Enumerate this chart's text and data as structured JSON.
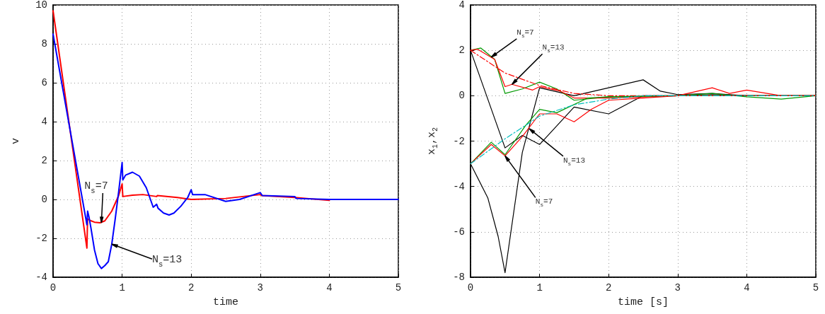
{
  "chart_data": [
    {
      "type": "line",
      "xlabel": "time",
      "ylabel": "v",
      "xlim": [
        0,
        5
      ],
      "xticks": [
        0,
        1,
        2,
        3,
        4,
        5
      ],
      "ylim": [
        -4,
        10
      ],
      "yticks": [
        -4,
        -2,
        0,
        2,
        4,
        6,
        8,
        10
      ],
      "grid": true,
      "series": [
        {
          "color": "#ff0000",
          "x": [
            0,
            0.49,
            0.5,
            0.55,
            0.6,
            0.68,
            0.75,
            0.85,
            0.95,
            1.0,
            1.01,
            1.15,
            1.3,
            1.5,
            1.51,
            1.8,
            2.0,
            2.5,
            3.0,
            3.02,
            3.5,
            4.0
          ],
          "values": [
            9.7,
            -2.5,
            -1.0,
            -1.1,
            -1.17,
            -1.2,
            -1.1,
            -0.6,
            0.2,
            0.8,
            0.15,
            0.22,
            0.25,
            0.15,
            0.2,
            0.1,
            0,
            0.05,
            0.25,
            0.2,
            0.1,
            -0.05
          ]
        },
        {
          "color": "#0000ff",
          "x": [
            0,
            0.49,
            0.5,
            0.52,
            0.55,
            0.6,
            0.65,
            0.7,
            0.75,
            0.8,
            0.85,
            0.9,
            0.95,
            1.0,
            1.01,
            1.05,
            1.15,
            1.25,
            1.35,
            1.45,
            1.5,
            1.52,
            1.6,
            1.68,
            1.75,
            1.85,
            1.95,
            2.0,
            2.02,
            2.2,
            2.5,
            2.7,
            3.0,
            3.03,
            3.5,
            3.52,
            4.0,
            5.0
          ],
          "values": [
            8.5,
            -1.3,
            -0.6,
            -0.9,
            -1.5,
            -2.6,
            -3.3,
            -3.55,
            -3.4,
            -3.2,
            -2.3,
            -1.0,
            0.4,
            1.9,
            1.0,
            1.25,
            1.4,
            1.2,
            0.6,
            -0.4,
            -0.25,
            -0.45,
            -0.7,
            -0.8,
            -0.7,
            -0.35,
            0.1,
            0.5,
            0.25,
            0.25,
            -0.1,
            0,
            0.35,
            0.2,
            0.15,
            0.05,
            0,
            0
          ]
        }
      ],
      "annotations": [
        {
          "text": "N$_{s}$=7",
          "x": 0.7,
          "y": -1.2
        },
        {
          "text": "N$_{s}$=13",
          "x": 0.85,
          "y": -2.3
        }
      ]
    },
    {
      "type": "line",
      "xlabel": "time [s]",
      "ylabel": "x$_{1}$,x$_{2}$",
      "xlim": [
        0,
        5
      ],
      "xticks": [
        0,
        1,
        2,
        3,
        4,
        5
      ],
      "ylim": [
        -8,
        4
      ],
      "yticks": [
        -8,
        -6,
        -4,
        -2,
        0,
        2,
        4
      ],
      "grid": true,
      "series": [
        {
          "color": "#000000",
          "x": [
            0,
            0.5,
            0.75,
            1.0,
            1.5,
            2.0,
            2.5,
            3.0,
            3.5,
            4.0,
            5.0
          ],
          "values": [
            2,
            -2.3,
            -1.75,
            -2.15,
            -0.5,
            -0.8,
            0,
            0,
            0.05,
            0,
            0
          ]
        },
        {
          "color": "#000000",
          "x": [
            0,
            0.25,
            0.4,
            0.5,
            0.75,
            1.0,
            1.5,
            2.0,
            2.5,
            2.75,
            3.0,
            3.5,
            4.0,
            5.0
          ],
          "values": [
            -3,
            -4.5,
            -6.2,
            -7.8,
            -2.5,
            0.35,
            0,
            0.35,
            0.7,
            0.2,
            0.05,
            0.1,
            0,
            0
          ]
        },
        {
          "color": "#009900",
          "x": [
            0,
            0.15,
            0.35,
            0.5,
            0.75,
            1.0,
            1.25,
            1.5,
            2.0,
            3.0,
            3.5,
            4.0,
            4.5,
            5.0
          ],
          "values": [
            2,
            2.1,
            1.6,
            0.1,
            0.3,
            0.6,
            0.3,
            -0.2,
            -0.05,
            0,
            0.1,
            -0.05,
            -0.15,
            0
          ]
        },
        {
          "color": "#ff0000",
          "x": [
            0,
            0.1,
            0.35,
            0.5,
            0.6,
            0.9,
            1.0,
            1.3,
            1.5,
            2.0,
            3.0,
            3.5,
            3.75,
            4.0,
            4.5,
            5.0
          ],
          "values": [
            2,
            2.05,
            1.6,
            0.4,
            0.5,
            0.25,
            0.4,
            0.2,
            -0.1,
            -0.1,
            0,
            0.35,
            0.1,
            0.25,
            0,
            0
          ]
        },
        {
          "color": "#ff0000",
          "line_style": "dashed",
          "x": [
            0,
            0.5,
            1.0,
            1.5,
            2.0,
            5.0
          ],
          "values": [
            2,
            1.0,
            0.45,
            0.1,
            0,
            0
          ]
        },
        {
          "color": "#009900",
          "x": [
            0,
            0.3,
            0.5,
            0.8,
            1.0,
            1.25,
            1.7,
            2.0,
            3.0,
            5.0
          ],
          "values": [
            -3,
            -2.05,
            -2.6,
            -1.3,
            -0.6,
            -0.75,
            -0.1,
            -0.05,
            0,
            0
          ]
        },
        {
          "color": "#ff0000",
          "x": [
            0,
            0.3,
            0.5,
            0.75,
            1.0,
            1.25,
            1.5,
            1.75,
            2.0,
            2.5,
            3.0,
            5.0
          ],
          "values": [
            -3,
            -2.15,
            -2.65,
            -1.8,
            -0.8,
            -0.8,
            -1.15,
            -0.6,
            -0.2,
            -0.1,
            0,
            0
          ]
        },
        {
          "color": "#00bfbf",
          "line_style": "dashed",
          "x": [
            0,
            0.5,
            1.0,
            1.5,
            2.0,
            2.5,
            5.0
          ],
          "values": [
            -3,
            -1.9,
            -0.9,
            -0.4,
            -0.15,
            0,
            0
          ]
        }
      ],
      "annotations": [
        {
          "text": "N$_{s}$=7",
          "x": 0.3,
          "y": 1.7
        },
        {
          "text": "N$_{s}$=13",
          "x": 0.6,
          "y": 0.5
        },
        {
          "text": "N$_{s}$=13",
          "x": 0.85,
          "y": -1.45
        },
        {
          "text": "N$_{s}$=7",
          "x": 0.5,
          "y": -2.65
        }
      ]
    }
  ]
}
